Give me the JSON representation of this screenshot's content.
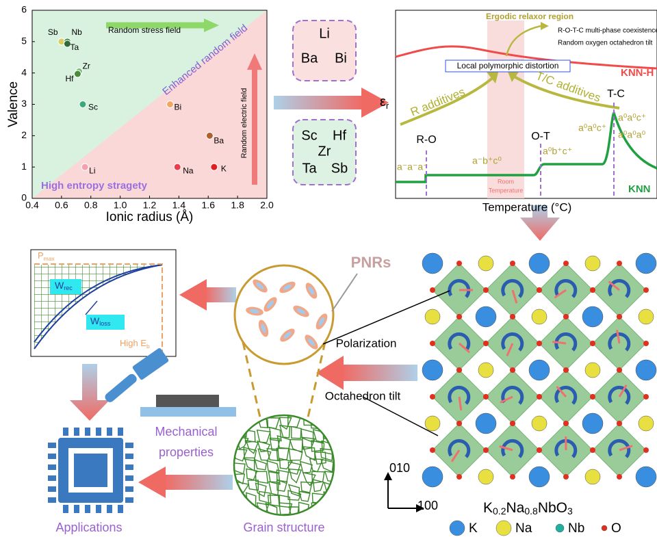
{
  "chart_data": {
    "type": "scatter",
    "xlabel": "Ionic radius (Å)",
    "ylabel": "Valence",
    "xlim": [
      0.4,
      2.0
    ],
    "ylim": [
      0,
      6
    ],
    "xticks": [
      0.4,
      0.6,
      0.8,
      {
        "value": 1.0,
        "label": "1.0"
      },
      1.2,
      1.4,
      1.6,
      1.8,
      {
        "value": 2.0,
        "label": "2.0"
      }
    ],
    "yticks": [
      0,
      1,
      2,
      3,
      4,
      5,
      6
    ],
    "annotations": [
      "Random stress field",
      "Enhanced random field",
      "Random electric field",
      "High entropy stragety"
    ],
    "points": [
      {
        "label": "Sb",
        "x": 0.6,
        "y": 5,
        "color": "#d8d060"
      },
      {
        "label": "Nb",
        "x": 0.64,
        "y": 5,
        "color": "#3a8a4a"
      },
      {
        "label": "Ta",
        "x": 0.64,
        "y": 4.93,
        "color": "#2f6b3a"
      },
      {
        "label": "Zr",
        "x": 0.72,
        "y": 4.05,
        "color": "#7fc07f"
      },
      {
        "label": "Hf",
        "x": 0.71,
        "y": 3.97,
        "color": "#4b8a3a"
      },
      {
        "label": "Sc",
        "x": 0.745,
        "y": 3,
        "color": "#3aa878"
      },
      {
        "label": "Bi",
        "x": 1.34,
        "y": 3,
        "color": "#f0a860"
      },
      {
        "label": "Ba",
        "x": 1.61,
        "y": 2,
        "color": "#b0602a"
      },
      {
        "label": "Li",
        "x": 0.76,
        "y": 1,
        "color": "#f4a0b0"
      },
      {
        "label": "Na",
        "x": 1.39,
        "y": 1,
        "color": "#e84050"
      },
      {
        "label": "K",
        "x": 1.64,
        "y": 1,
        "color": "#e02020"
      }
    ]
  },
  "dopants": {
    "a_site": [
      "Li",
      "Ba",
      "Bi"
    ],
    "b_site": [
      "Sc",
      "Hf",
      "Zr",
      "Ta",
      "Sb"
    ]
  },
  "dielectric": {
    "ylabel": {
      "main": "ε",
      "sub": "r"
    },
    "xlabel": "Temperature (°C)",
    "region": "Ergodic relaxor region",
    "notes": [
      "R-O-T-C multi-phase coexistence",
      "Random oxygen octahedron tilt"
    ],
    "boxed": "Local polymorphic distortion",
    "curves": [
      "KNN-H",
      "KNN"
    ],
    "transitions": [
      "R-O",
      "O-T",
      "T-C",
      "T-C"
    ],
    "additives": [
      "R additives",
      "T/C additives"
    ],
    "phases": [
      "a⁻a⁻a⁻",
      "a⁻b⁺c⁰",
      "a⁰b⁺c⁺",
      "a⁰a⁰c⁺",
      "a⁰a⁰c⁺",
      "a⁰a⁰a⁰"
    ],
    "room": [
      "Room",
      "Temperature"
    ]
  },
  "energy": {
    "pmax": {
      "main": "P",
      "sub": "max"
    },
    "wrec": {
      "main": "W",
      "sub": "rec"
    },
    "wloss": {
      "main": "W",
      "sub": "loss"
    },
    "eb": {
      "main": "High E",
      "sub": "b"
    }
  },
  "labels": {
    "pnrs": "PNRs",
    "polarization": "Polarization",
    "tilt": "Octahedron tilt",
    "mechanical": [
      "Mechanical",
      "properties"
    ],
    "applications": "Applications",
    "grain": "Grain structure",
    "axis_v": "010",
    "axis_h": "100"
  },
  "formula": [
    {
      "main": "K",
      "sub": "0.2"
    },
    {
      "main": "Na",
      "sub": "0.8"
    },
    {
      "main": "NbO",
      "sub": "3"
    }
  ],
  "legend": [
    {
      "label": "K",
      "color": "#3a8ee0"
    },
    {
      "label": "Na",
      "color": "#e8e040"
    },
    {
      "label": "Nb",
      "color": "#20b0a0"
    },
    {
      "label": "O",
      "color": "#e03020"
    }
  ]
}
